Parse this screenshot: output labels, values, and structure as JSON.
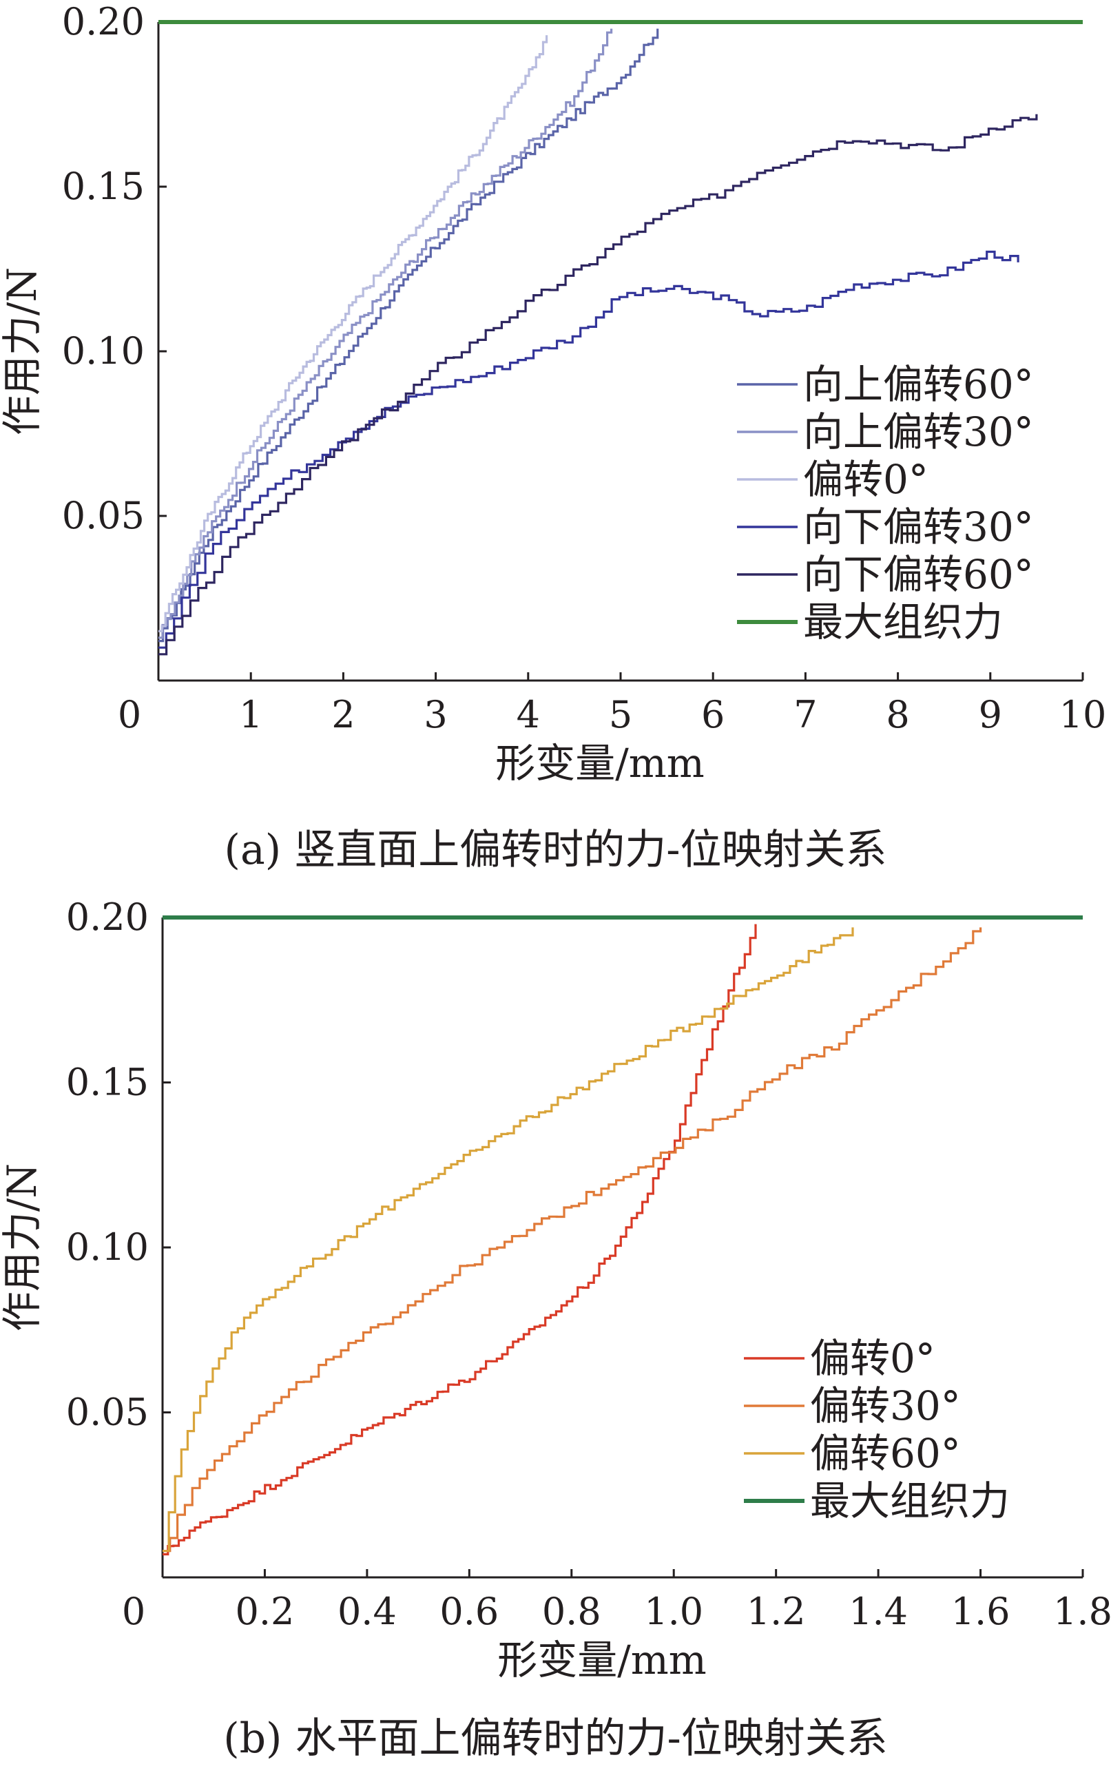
{
  "chart_data": [
    {
      "type": "line",
      "caption": "(a) 竖直面上偏转时的力-位映射关系",
      "xlabel": "形变量/mm",
      "ylabel": "作用力/N",
      "xlim": [
        0,
        10
      ],
      "ylim": [
        0,
        0.2
      ],
      "xticks": [
        "0",
        "1",
        "2",
        "3",
        "4",
        "5",
        "6",
        "7",
        "8",
        "9",
        "10"
      ],
      "yticks": [
        "0.05",
        "0.10",
        "0.15",
        "0.20"
      ],
      "legend_position": "right-middle",
      "series": [
        {
          "name": "向上偏转60°",
          "color": "#5a64a8",
          "style": "step",
          "x": [
            0,
            0.5,
            1,
            1.5,
            2,
            2.5,
            3,
            3.5,
            4,
            4.5,
            5,
            5.4
          ],
          "y": [
            0.012,
            0.042,
            0.062,
            0.08,
            0.098,
            0.116,
            0.132,
            0.147,
            0.16,
            0.172,
            0.183,
            0.198
          ]
        },
        {
          "name": "向上偏转30°",
          "color": "#8a90c6",
          "style": "step",
          "x": [
            0,
            0.5,
            1,
            1.5,
            2,
            2.5,
            3,
            3.5,
            4,
            4.5,
            4.9
          ],
          "y": [
            0.013,
            0.044,
            0.066,
            0.086,
            0.104,
            0.12,
            0.136,
            0.15,
            0.163,
            0.177,
            0.198
          ]
        },
        {
          "name": "偏转0°",
          "color": "#b8bcdf",
          "style": "step",
          "x": [
            0,
            0.5,
            1,
            1.5,
            2,
            2.5,
            3,
            3.5,
            4,
            4.2
          ],
          "y": [
            0.015,
            0.048,
            0.072,
            0.093,
            0.111,
            0.128,
            0.145,
            0.163,
            0.184,
            0.196
          ]
        },
        {
          "name": "向下偏转30°",
          "color": "#33359a",
          "style": "step",
          "x": [
            0,
            0.5,
            1,
            1.5,
            2,
            2.5,
            3,
            3.5,
            4,
            4.5,
            5,
            5.5,
            6,
            6.5,
            7,
            7.5,
            8,
            8.5,
            9,
            9.3
          ],
          "y": [
            0.01,
            0.038,
            0.055,
            0.064,
            0.074,
            0.083,
            0.089,
            0.093,
            0.099,
            0.105,
            0.117,
            0.119,
            0.117,
            0.111,
            0.113,
            0.12,
            0.122,
            0.124,
            0.13,
            0.127
          ]
        },
        {
          "name": "向下偏转60°",
          "color": "#2e2660",
          "style": "step",
          "x": [
            0,
            0.5,
            1,
            1.5,
            2,
            2.5,
            3,
            3.5,
            4,
            4.5,
            5,
            5.5,
            6,
            6.5,
            7,
            7.5,
            8,
            8.5,
            9,
            9.5
          ],
          "y": [
            0.008,
            0.03,
            0.047,
            0.06,
            0.072,
            0.083,
            0.095,
            0.105,
            0.115,
            0.124,
            0.134,
            0.142,
            0.147,
            0.155,
            0.16,
            0.165,
            0.163,
            0.161,
            0.168,
            0.172
          ]
        },
        {
          "name": "最大组织力",
          "color": "#3d8b3d",
          "style": "line",
          "x": [
            0,
            10
          ],
          "y": [
            0.2,
            0.2
          ]
        }
      ]
    },
    {
      "type": "line",
      "caption": "(b) 水平面上偏转时的力-位映射关系",
      "xlabel": "形变量/mm",
      "ylabel": "作用力/N",
      "xlim": [
        0,
        1.8
      ],
      "ylim": [
        0,
        0.2
      ],
      "xticks": [
        "0",
        "0.2",
        "0.4",
        "0.6",
        "0.8",
        "1.0",
        "1.2",
        "1.4",
        "1.6",
        "1.8"
      ],
      "yticks": [
        "0.05",
        "0.10",
        "0.15",
        "0.20"
      ],
      "legend_position": "bottom-right",
      "series": [
        {
          "name": "偏转0°",
          "color": "#d93a26",
          "style": "step",
          "x": [
            0,
            0.05,
            0.1,
            0.2,
            0.3,
            0.4,
            0.5,
            0.6,
            0.7,
            0.8,
            0.85,
            0.9,
            0.95,
            1.0,
            1.05,
            1.1,
            1.15,
            1.16
          ],
          "y": [
            0.007,
            0.014,
            0.018,
            0.027,
            0.036,
            0.045,
            0.053,
            0.061,
            0.072,
            0.085,
            0.093,
            0.104,
            0.117,
            0.132,
            0.155,
            0.175,
            0.194,
            0.198
          ]
        },
        {
          "name": "偏转30°",
          "color": "#e07a38",
          "style": "step",
          "x": [
            0,
            0.05,
            0.1,
            0.2,
            0.3,
            0.4,
            0.5,
            0.6,
            0.7,
            0.8,
            0.9,
            1.0,
            1.1,
            1.2,
            1.3,
            1.4,
            1.5,
            1.6
          ],
          "y": [
            0.008,
            0.025,
            0.036,
            0.05,
            0.063,
            0.074,
            0.085,
            0.095,
            0.104,
            0.113,
            0.122,
            0.13,
            0.14,
            0.153,
            0.16,
            0.172,
            0.184,
            0.197
          ]
        },
        {
          "name": "偏转60°",
          "color": "#d9a43a",
          "style": "step",
          "x": [
            0,
            0.025,
            0.05,
            0.1,
            0.15,
            0.2,
            0.3,
            0.4,
            0.5,
            0.6,
            0.7,
            0.8,
            0.9,
            1.0,
            1.1,
            1.2,
            1.3,
            1.35
          ],
          "y": [
            0.008,
            0.032,
            0.045,
            0.065,
            0.077,
            0.085,
            0.096,
            0.108,
            0.119,
            0.128,
            0.138,
            0.147,
            0.156,
            0.165,
            0.174,
            0.183,
            0.192,
            0.197
          ]
        },
        {
          "name": "最大组织力",
          "color": "#2e7d4a",
          "style": "line",
          "x": [
            0,
            1.8
          ],
          "y": [
            0.2,
            0.2
          ]
        }
      ]
    }
  ]
}
